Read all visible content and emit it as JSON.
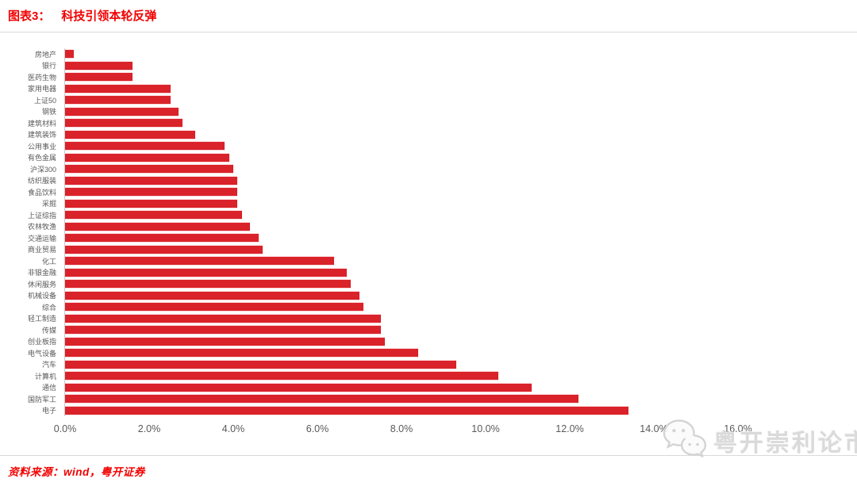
{
  "header": {
    "fig_label": "图表3：",
    "fig_title": "科技引领本轮反弹"
  },
  "chart_data": {
    "type": "bar",
    "orientation": "horizontal",
    "title": "科技引领本轮反弹",
    "unit": "%",
    "xlim": [
      0,
      16
    ],
    "x_ticks": [
      "0.0%",
      "2.0%",
      "4.0%",
      "6.0%",
      "8.0%",
      "10.0%",
      "12.0%",
      "14.0%",
      "16.0%"
    ],
    "grid": false,
    "legend": false,
    "bar_color": "#d9222a",
    "categories": [
      "房地产",
      "银行",
      "医药生物",
      "家用电器",
      "上证50",
      "钢铁",
      "建筑材料",
      "建筑装饰",
      "公用事业",
      "有色金属",
      "沪深300",
      "纺织服装",
      "食品饮料",
      "采掘",
      "上证综指",
      "农林牧渔",
      "交通运输",
      "商业贸易",
      "化工",
      "非银金融",
      "休闲服务",
      "机械设备",
      "综合",
      "轻工制造",
      "传媒",
      "创业板指",
      "电气设备",
      "汽车",
      "计算机",
      "通信",
      "国防军工",
      "电子"
    ],
    "values": [
      0.2,
      1.6,
      1.6,
      2.5,
      2.5,
      2.7,
      2.8,
      3.1,
      3.8,
      3.9,
      4.0,
      4.1,
      4.1,
      4.1,
      4.2,
      4.4,
      4.6,
      4.7,
      6.4,
      6.7,
      6.8,
      7.0,
      7.1,
      7.5,
      7.5,
      7.6,
      8.4,
      9.3,
      10.3,
      11.1,
      12.2,
      13.4
    ]
  },
  "footer": {
    "source": "资料来源：wind，粤开证券"
  },
  "watermark": {
    "icon": "wechat-icon",
    "text": "粤开崇利论市"
  }
}
